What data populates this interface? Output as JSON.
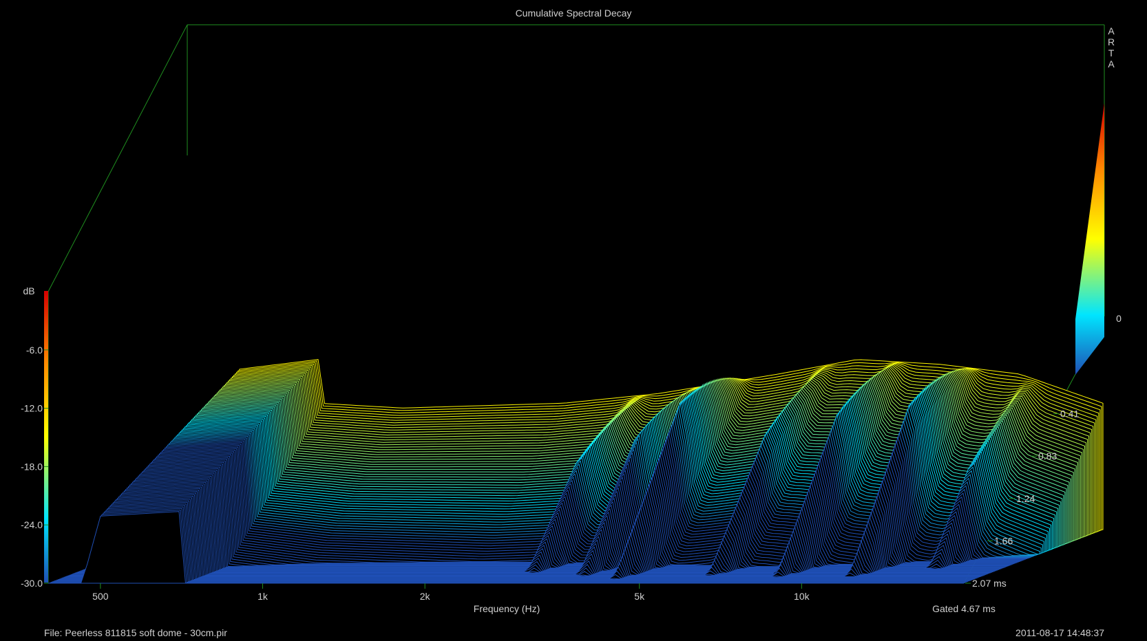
{
  "chart_data": {
    "type": "waterfall",
    "title": "Cumulative Spectral Decay",
    "xlabel": "Frequency (Hz)",
    "x_scale": "log",
    "x_ticks": [
      {
        "label": "500",
        "value": 500
      },
      {
        "label": "1k",
        "value": 1000
      },
      {
        "label": "2k",
        "value": 2000
      },
      {
        "label": "5k",
        "value": 5000
      },
      {
        "label": "10k",
        "value": 10000
      }
    ],
    "xlim": [
      400,
      20000
    ],
    "ylabel": "dB",
    "y_ticks": [
      "-6.0",
      "-12.0",
      "-18.0",
      "-24.0",
      "-30.0"
    ],
    "ylim": [
      -30,
      0
    ],
    "colorbar_label": "0",
    "time_ticks": [
      "0.41",
      "0.83",
      "1.24",
      "1.66",
      "2.07 ms"
    ],
    "time_range_ms": [
      0,
      2.07
    ],
    "time_slices": 100,
    "front_response_db": [
      {
        "freq": 400,
        "db": -28
      },
      {
        "freq": 500,
        "db": -8
      },
      {
        "freq": 700,
        "db": -7
      },
      {
        "freq": 1000,
        "db": -7.5
      },
      {
        "freq": 2000,
        "db": -7
      },
      {
        "freq": 3000,
        "db": -6
      },
      {
        "freq": 5000,
        "db": -4
      },
      {
        "freq": 7000,
        "db": -2.5
      },
      {
        "freq": 10000,
        "db": -3
      },
      {
        "freq": 14000,
        "db": -4
      },
      {
        "freq": 20000,
        "db": -7
      }
    ],
    "gated": "Gated 4.67 ms",
    "brand": "ARTA",
    "colors": {
      "background": "#000000",
      "frame": "#1f8f1f",
      "text": "#d0d0d0",
      "palette": [
        "#1f4fb5",
        "#00e5ff",
        "#ffff00",
        "#ff8c00",
        "#d40000"
      ]
    }
  },
  "footer": {
    "file": "File: Peerless 811815 soft dome - 30cm.pir",
    "timestamp": "2011-08-17  14:48:37"
  }
}
